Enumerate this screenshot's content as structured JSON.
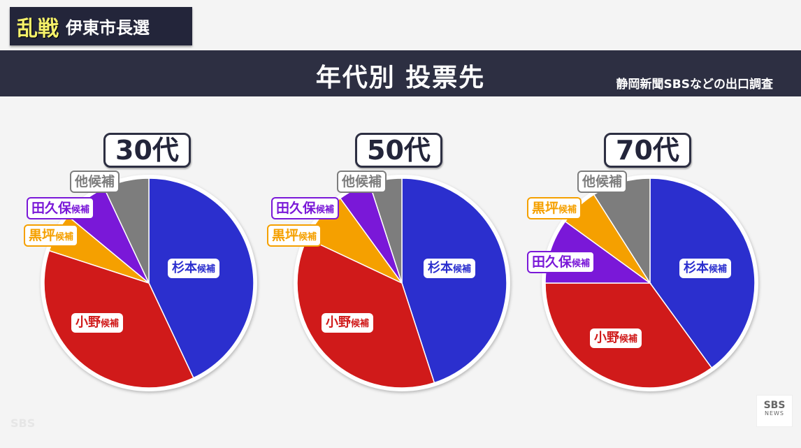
{
  "header": {
    "badge_highlight": "乱戦",
    "badge_text": "伊東市長選",
    "title": "年代別 投票先",
    "source": "静岡新聞SBSなどの出口調査"
  },
  "candidate_suffix": "候補",
  "colors": {
    "杉本": "#2b2fce",
    "小野": "#d01a1a",
    "黒坪": "#f5a000",
    "田久保": "#7a18d8",
    "他": "#7d7d7d"
  },
  "panels": [
    {
      "age": "30代",
      "labels": {
        "sugimoto": "杉本",
        "ono": "小野",
        "kurotsubo": "黒坪",
        "takubo": "田久保",
        "other": "他候補"
      }
    },
    {
      "age": "50代",
      "labels": {
        "sugimoto": "杉本",
        "ono": "小野",
        "kurotsubo": "黒坪",
        "takubo": "田久保",
        "other": "他候補"
      }
    },
    {
      "age": "70代",
      "labels": {
        "sugimoto": "杉本",
        "ono": "小野",
        "kurotsubo": "黒坪",
        "takubo": "田久保",
        "other": "他候補"
      }
    }
  ],
  "footer": {
    "watermark": "SBS",
    "logo_top": "SBS",
    "logo_bottom": "NEWS"
  },
  "chart_data": [
    {
      "type": "pie",
      "title": "30代",
      "categories": [
        "杉本候補",
        "小野候補",
        "黒坪候補",
        "田久保候補",
        "他候補"
      ],
      "values": [
        43,
        37,
        6,
        7,
        7
      ],
      "colors": [
        "#2b2fce",
        "#d01a1a",
        "#f5a000",
        "#7a18d8",
        "#7d7d7d"
      ],
      "note": "approximate shares estimated from slice angles; no numeric labels shown"
    },
    {
      "type": "pie",
      "title": "50代",
      "categories": [
        "杉本候補",
        "小野候補",
        "黒坪候補",
        "田久保候補",
        "他候補"
      ],
      "values": [
        45,
        37,
        8,
        5,
        5
      ],
      "colors": [
        "#2b2fce",
        "#d01a1a",
        "#f5a000",
        "#7a18d8",
        "#7d7d7d"
      ],
      "note": "approximate shares estimated from slice angles; no numeric labels shown"
    },
    {
      "type": "pie",
      "title": "70代",
      "categories": [
        "杉本候補",
        "小野候補",
        "田久保候補",
        "黒坪候補",
        "他候補"
      ],
      "values": [
        40,
        35,
        10,
        6,
        9
      ],
      "colors": [
        "#2b2fce",
        "#d01a1a",
        "#7a18d8",
        "#f5a000",
        "#7d7d7d"
      ],
      "note": "approximate shares estimated from slice angles; no numeric labels shown"
    }
  ]
}
